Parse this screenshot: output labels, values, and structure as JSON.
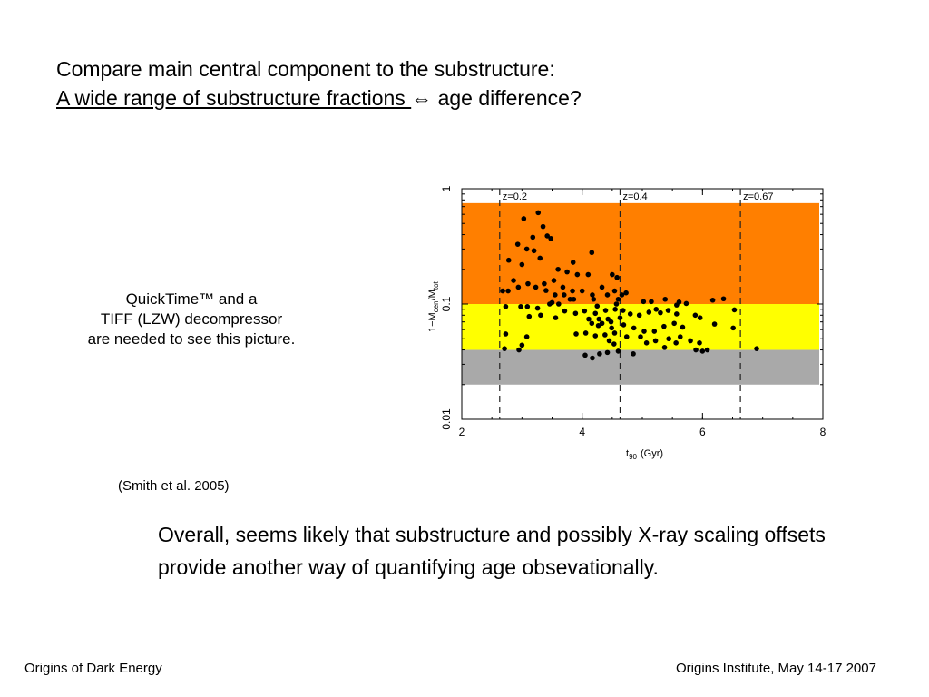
{
  "slide": {
    "title_line1": "Compare main central component to the substructure:",
    "title_line2_underlined": "A wide range of substructure fractions ",
    "title_line2_symbol": "⇔",
    "title_line2_rest": " age difference?",
    "placeholder_line1": "QuickTime™ and a",
    "placeholder_line2": "TIFF (LZW) decompressor",
    "placeholder_line3": "are needed to see this picture.",
    "citation": "(Smith et al. 2005)",
    "conclusion": "Overall, seems likely that substructure and possibly X-ray scaling offsets provide another way of quantifying age obsevationally.",
    "footer_left": "Origins of Dark Energy",
    "footer_right": "Origins Institute, May 14-17 2007"
  },
  "colors": {
    "band_high": "#ff7f00",
    "band_mid": "#ffff00",
    "band_low": "#a9a9a9",
    "points": "#000000"
  },
  "chart_data": {
    "type": "scatter",
    "xlabel": "t90 (Gyr)",
    "ylabel": "1−Mcen/Mtot",
    "xlim": [
      2,
      8
    ],
    "ylim": [
      0.01,
      1
    ],
    "yscale": "log",
    "x_ticks": [
      "2",
      "4",
      "6",
      "8"
    ],
    "y_ticks": [
      "0.01",
      "0.1",
      "1"
    ],
    "bands": [
      {
        "from": 0.1,
        "to": 0.75,
        "color": "orange"
      },
      {
        "from": 0.04,
        "to": 0.1,
        "color": "yellow"
      },
      {
        "from": 0.02,
        "to": 0.04,
        "color": "gray"
      }
    ],
    "redshift_markers": [
      {
        "label": "z=0.2",
        "x": 2.63
      },
      {
        "label": "z=0.4",
        "x": 4.63
      },
      {
        "label": "z=0.67",
        "x": 6.63
      }
    ],
    "points": [
      [
        3.27,
        0.62
      ],
      [
        3.03,
        0.55
      ],
      [
        3.35,
        0.47
      ],
      [
        3.18,
        0.38
      ],
      [
        3.48,
        0.37
      ],
      [
        2.93,
        0.33
      ],
      [
        3.08,
        0.3
      ],
      [
        3.2,
        0.29
      ],
      [
        3.42,
        0.39
      ],
      [
        4.16,
        0.28
      ],
      [
        2.78,
        0.24
      ],
      [
        3.0,
        0.22
      ],
      [
        3.3,
        0.25
      ],
      [
        3.6,
        0.2
      ],
      [
        3.75,
        0.19
      ],
      [
        3.85,
        0.23
      ],
      [
        3.92,
        0.18
      ],
      [
        4.1,
        0.18
      ],
      [
        4.5,
        0.18
      ],
      [
        4.58,
        0.17
      ],
      [
        2.86,
        0.16
      ],
      [
        2.94,
        0.14
      ],
      [
        3.1,
        0.15
      ],
      [
        3.23,
        0.14
      ],
      [
        3.37,
        0.15
      ],
      [
        3.53,
        0.16
      ],
      [
        3.68,
        0.14
      ],
      [
        3.84,
        0.13
      ],
      [
        4.0,
        0.13
      ],
      [
        4.17,
        0.12
      ],
      [
        4.33,
        0.14
      ],
      [
        4.42,
        0.12
      ],
      [
        4.54,
        0.13
      ],
      [
        4.66,
        0.12
      ],
      [
        4.73,
        0.125
      ],
      [
        2.68,
        0.13
      ],
      [
        2.77,
        0.13
      ],
      [
        3.55,
        0.12
      ],
      [
        3.7,
        0.12
      ],
      [
        3.86,
        0.11
      ],
      [
        3.46,
        0.1
      ],
      [
        3.61,
        0.1
      ],
      [
        3.8,
        0.11
      ],
      [
        4.19,
        0.11
      ],
      [
        4.6,
        0.11
      ],
      [
        2.73,
        0.095
      ],
      [
        2.98,
        0.095
      ],
      [
        3.09,
        0.095
      ],
      [
        3.26,
        0.092
      ],
      [
        3.71,
        0.087
      ],
      [
        3.89,
        0.083
      ],
      [
        4.04,
        0.087
      ],
      [
        4.22,
        0.083
      ],
      [
        4.39,
        0.088
      ],
      [
        4.55,
        0.09
      ],
      [
        4.68,
        0.088
      ],
      [
        5.02,
        0.105
      ],
      [
        5.15,
        0.105
      ],
      [
        5.38,
        0.11
      ],
      [
        5.57,
        0.098
      ],
      [
        5.73,
        0.101
      ],
      [
        6.17,
        0.108
      ],
      [
        6.35,
        0.111
      ],
      [
        6.53,
        0.089
      ],
      [
        3.12,
        0.078
      ],
      [
        3.31,
        0.08
      ],
      [
        3.56,
        0.076
      ],
      [
        4.11,
        0.074
      ],
      [
        4.28,
        0.074
      ],
      [
        4.43,
        0.074
      ],
      [
        4.63,
        0.076
      ],
      [
        4.8,
        0.082
      ],
      [
        4.95,
        0.08
      ],
      [
        5.11,
        0.085
      ],
      [
        5.3,
        0.084
      ],
      [
        5.43,
        0.088
      ],
      [
        5.57,
        0.082
      ],
      [
        5.88,
        0.08
      ],
      [
        5.96,
        0.076
      ],
      [
        4.16,
        0.068
      ],
      [
        4.33,
        0.068
      ],
      [
        4.48,
        0.07
      ],
      [
        4.27,
        0.065
      ],
      [
        4.49,
        0.062
      ],
      [
        4.69,
        0.066
      ],
      [
        4.86,
        0.062
      ],
      [
        5.03,
        0.058
      ],
      [
        5.2,
        0.058
      ],
      [
        5.36,
        0.064
      ],
      [
        5.53,
        0.068
      ],
      [
        5.67,
        0.063
      ],
      [
        6.2,
        0.067
      ],
      [
        6.51,
        0.062
      ],
      [
        2.73,
        0.055
      ],
      [
        3.08,
        0.052
      ],
      [
        3.9,
        0.055
      ],
      [
        4.06,
        0.056
      ],
      [
        4.22,
        0.053
      ],
      [
        4.38,
        0.054
      ],
      [
        4.54,
        0.056
      ],
      [
        4.97,
        0.052
      ],
      [
        5.22,
        0.048
      ],
      [
        5.44,
        0.05
      ],
      [
        5.63,
        0.052
      ],
      [
        5.8,
        0.048
      ],
      [
        5.95,
        0.046
      ],
      [
        5.07,
        0.046
      ],
      [
        5.56,
        0.046
      ],
      [
        3.0,
        0.044
      ],
      [
        2.95,
        0.04
      ],
      [
        2.71,
        0.041
      ],
      [
        5.37,
        0.042
      ],
      [
        5.89,
        0.04
      ],
      [
        6.0,
        0.039
      ],
      [
        6.08,
        0.04
      ],
      [
        6.9,
        0.041
      ],
      [
        4.05,
        0.036
      ],
      [
        4.17,
        0.034
      ],
      [
        4.29,
        0.037
      ],
      [
        4.42,
        0.038
      ],
      [
        4.6,
        0.039
      ],
      [
        4.85,
        0.037
      ],
      [
        4.45,
        0.048
      ],
      [
        4.53,
        0.045
      ],
      [
        4.74,
        0.052
      ],
      [
        3.4,
        0.131
      ],
      [
        3.5,
        0.103
      ],
      [
        4.25,
        0.096
      ],
      [
        4.57,
        0.1
      ],
      [
        5.23,
        0.09
      ],
      [
        5.61,
        0.104
      ]
    ]
  }
}
